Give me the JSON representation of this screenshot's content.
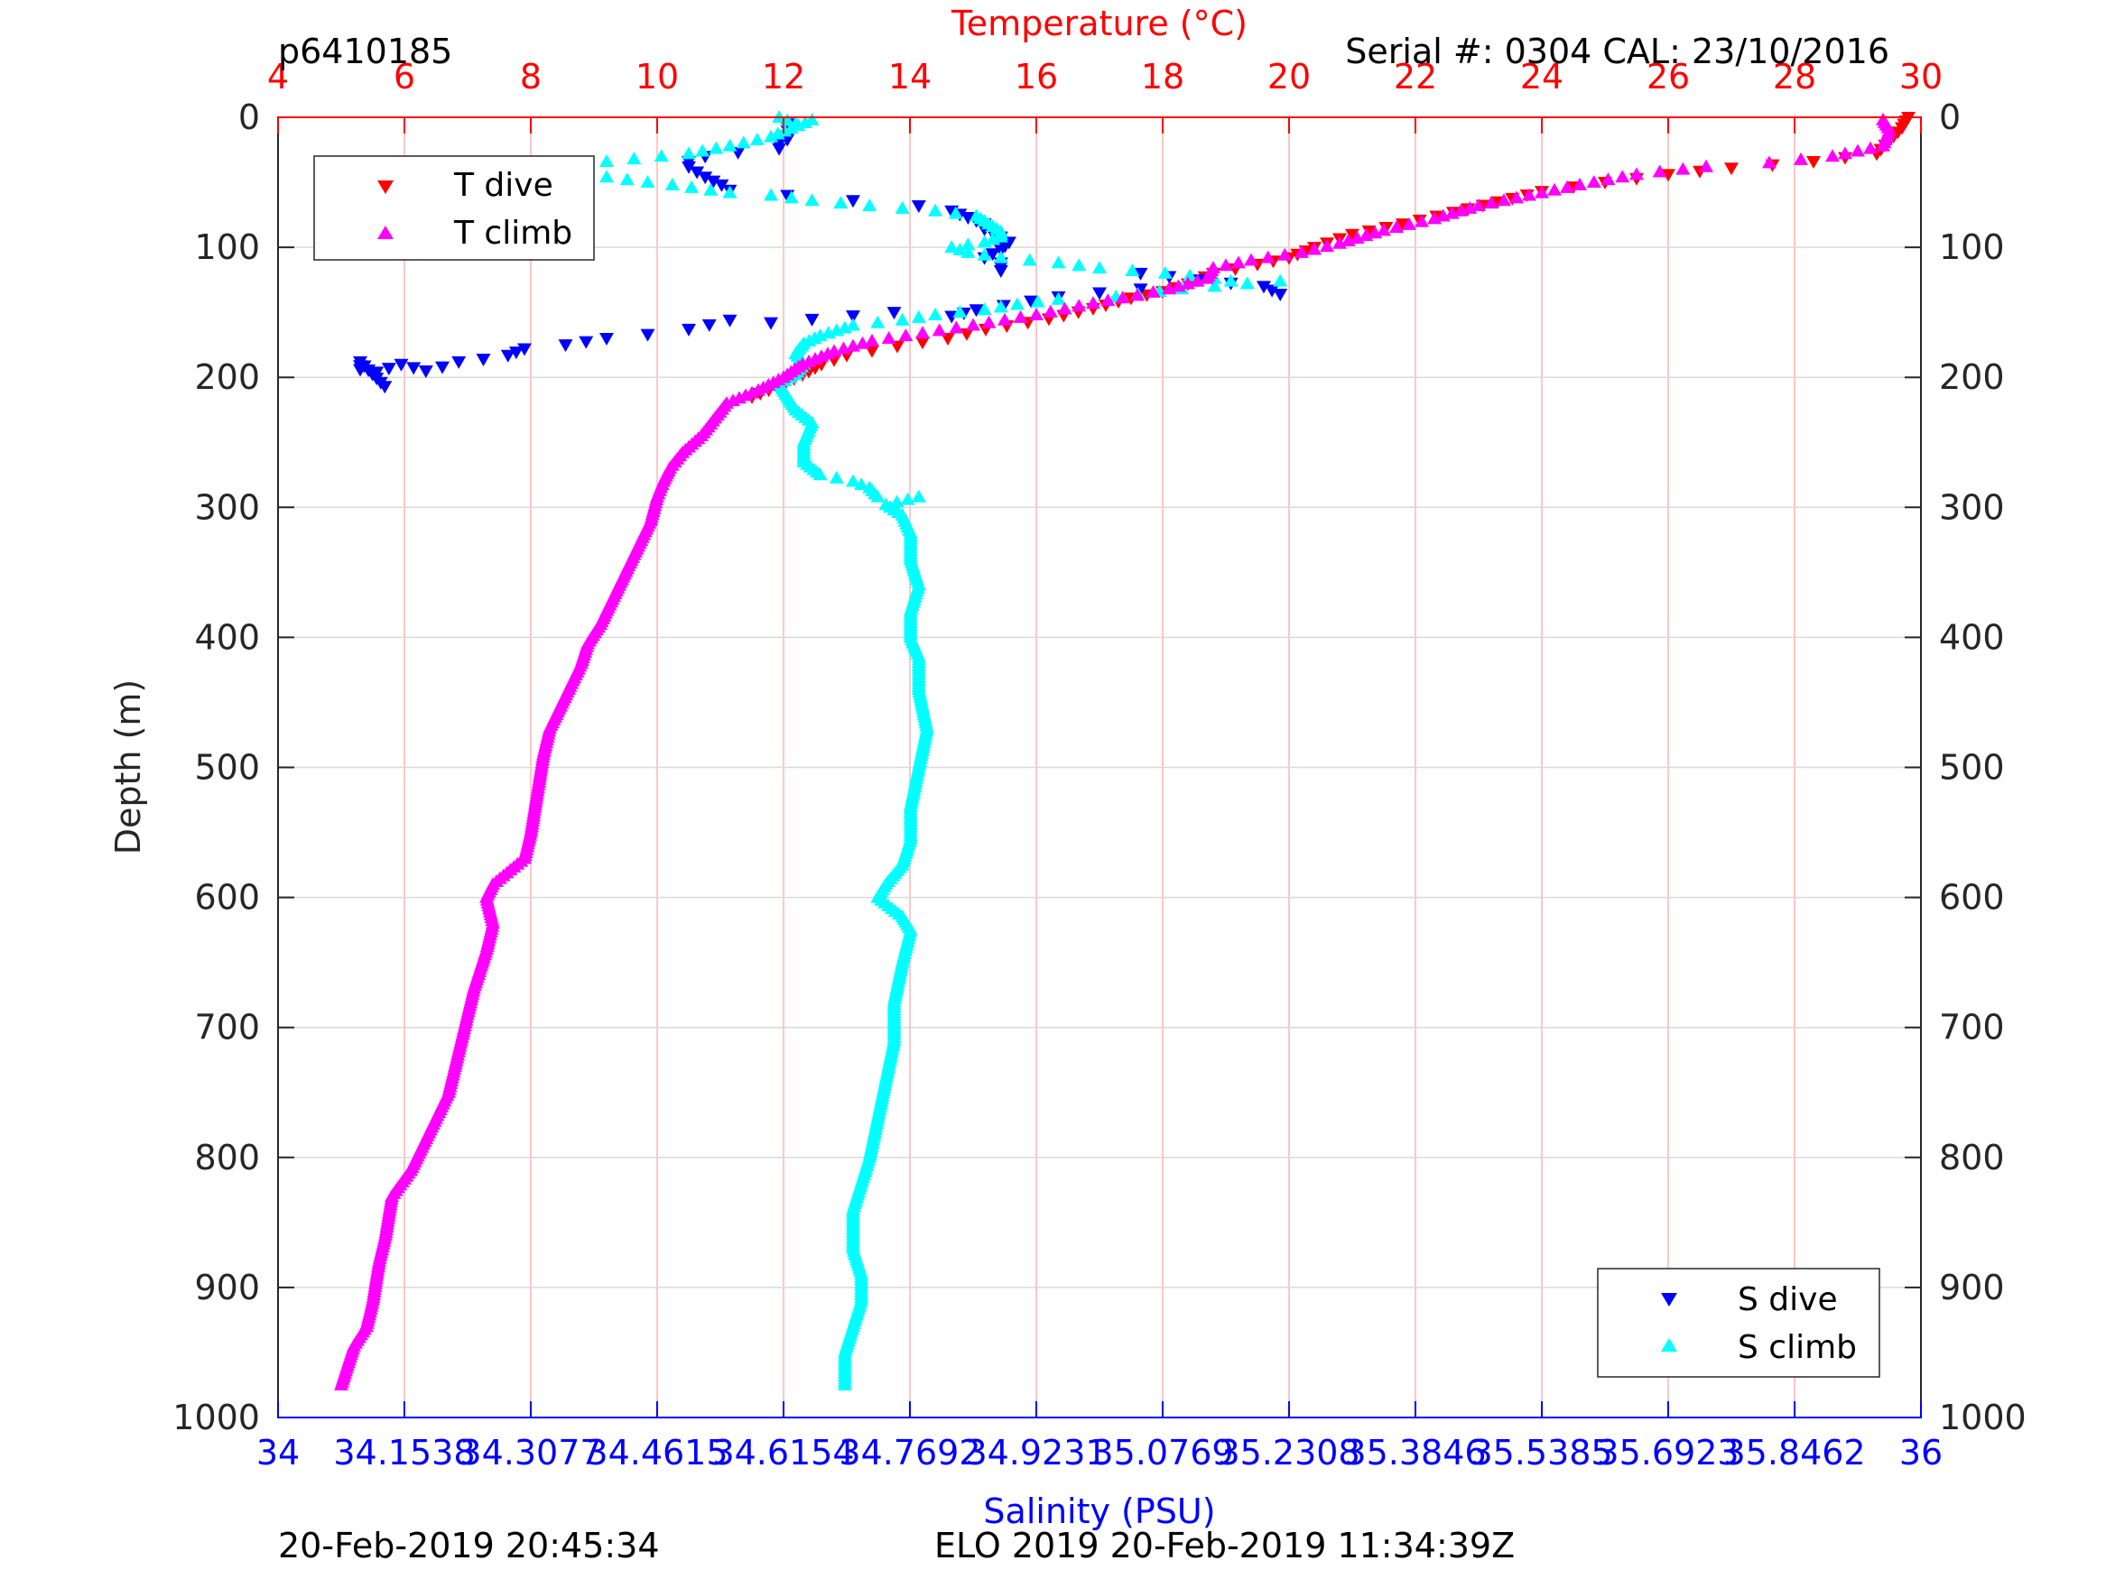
{
  "header": {
    "profile_id": "p6410185",
    "serial_cal": "Serial #: 0304  CAL: 23/10/2016"
  },
  "footer": {
    "left_timestamp": "20-Feb-2019 20:45:34",
    "right_text": "ELO 2019 20-Feb-2019 11:34:39Z"
  },
  "colors": {
    "temperature_axis": "#ff0000",
    "salinity_axis": "#0000ff",
    "t_dive": "#ff0000",
    "t_climb": "#ff00ff",
    "s_dive": "#0000ff",
    "s_climb": "#00ffff",
    "grid_vertical": "#ffb3b3",
    "grid_horizontal": "#d9d9d9"
  },
  "chart_data": {
    "type": "scatter",
    "title": "",
    "y_axis": {
      "label": "Depth (m)",
      "range": [
        0,
        1000
      ],
      "reversed": true,
      "ticks": [
        0,
        100,
        200,
        300,
        400,
        500,
        600,
        700,
        800,
        900,
        1000
      ],
      "tick_labels": [
        "0",
        "100",
        "200",
        "300",
        "400",
        "500",
        "600",
        "700",
        "800",
        "900",
        "1000"
      ],
      "right_ticks_mirrored": true
    },
    "top_axis": {
      "label": "Temperature (°C)",
      "range": [
        4,
        30
      ],
      "ticks": [
        4,
        6,
        8,
        10,
        12,
        14,
        16,
        18,
        20,
        22,
        24,
        26,
        28,
        30
      ],
      "tick_labels": [
        "4",
        "6",
        "8",
        "10",
        "12",
        "14",
        "16",
        "18",
        "20",
        "22",
        "24",
        "26",
        "28",
        "30"
      ]
    },
    "bottom_axis": {
      "label": "Salinity (PSU)",
      "range": [
        34,
        36
      ],
      "ticks": [
        34,
        34.1538,
        34.3077,
        34.4615,
        34.6154,
        34.7692,
        34.9231,
        35.0769,
        35.2308,
        35.3846,
        35.5385,
        35.6923,
        35.8462,
        36
      ],
      "tick_labels": [
        "34",
        "34.1538",
        "34.3077",
        "34.4615",
        "34.6154",
        "34.7692",
        "34.9231",
        "35.0769",
        "35.2308",
        "35.3846",
        "35.5385",
        "35.6923",
        "35.8462",
        "36"
      ]
    },
    "grid": {
      "vertical": true,
      "horizontal": true
    },
    "legends": [
      {
        "placement": "top-left",
        "entries": [
          "T dive",
          "T climb"
        ]
      },
      {
        "placement": "bottom-right",
        "entries": [
          "S dive",
          "S climb"
        ]
      }
    ],
    "series": [
      {
        "name": "T dive",
        "axis": "temperature",
        "marker": "triangle-down",
        "color": "#ff0000",
        "points": [
          [
            29.8,
            0
          ],
          [
            29.7,
            8
          ],
          [
            29.5,
            18
          ],
          [
            29.3,
            28
          ],
          [
            28.3,
            34
          ],
          [
            27.0,
            39
          ],
          [
            26.0,
            44
          ],
          [
            25.0,
            50
          ],
          [
            24.0,
            57
          ],
          [
            23.3,
            65
          ],
          [
            22.6,
            73
          ],
          [
            21.8,
            82
          ],
          [
            21.0,
            90
          ],
          [
            20.4,
            100
          ],
          [
            20.0,
            108
          ],
          [
            19.5,
            113
          ],
          [
            18.8,
            120
          ],
          [
            18.4,
            128
          ],
          [
            18.0,
            134
          ],
          [
            17.5,
            139
          ],
          [
            16.9,
            147
          ],
          [
            16.2,
            155
          ],
          [
            15.2,
            163
          ],
          [
            14.6,
            170
          ],
          [
            13.8,
            176
          ],
          [
            13.0,
            183
          ],
          [
            12.6,
            190
          ],
          [
            12.3,
            198
          ],
          [
            11.9,
            207
          ],
          [
            11.5,
            215
          ]
        ]
      },
      {
        "name": "T climb",
        "axis": "temperature",
        "marker": "triangle-up",
        "color": "#ff00ff",
        "points": [
          [
            29.4,
            2
          ],
          [
            29.5,
            10
          ],
          [
            29.4,
            22
          ],
          [
            28.6,
            30
          ],
          [
            27.6,
            35
          ],
          [
            26.6,
            38
          ],
          [
            25.5,
            44
          ],
          [
            24.6,
            52
          ],
          [
            23.8,
            60
          ],
          [
            23.0,
            68
          ],
          [
            22.3,
            78
          ],
          [
            21.5,
            87
          ],
          [
            20.8,
            97
          ],
          [
            20.2,
            104
          ],
          [
            19.4,
            110
          ],
          [
            18.8,
            116
          ],
          [
            18.7,
            124
          ],
          [
            18.1,
            132
          ],
          [
            17.6,
            137
          ],
          [
            16.9,
            143
          ],
          [
            16.0,
            152
          ],
          [
            15.0,
            160
          ],
          [
            14.2,
            166
          ],
          [
            13.4,
            172
          ],
          [
            12.8,
            180
          ],
          [
            12.3,
            190
          ],
          [
            12.0,
            200
          ],
          [
            11.6,
            210
          ],
          [
            11.1,
            220
          ],
          [
            10.7,
            245
          ],
          [
            10.4,
            258
          ],
          [
            10.2,
            270
          ],
          [
            10.1,
            280
          ],
          [
            10.0,
            292
          ],
          [
            9.9,
            310
          ],
          [
            9.7,
            330
          ],
          [
            9.4,
            360
          ],
          [
            9.1,
            390
          ],
          [
            8.9,
            405
          ],
          [
            8.8,
            420
          ],
          [
            8.6,
            440
          ],
          [
            8.3,
            470
          ],
          [
            8.2,
            490
          ],
          [
            8.1,
            520
          ],
          [
            8.0,
            550
          ],
          [
            7.9,
            570
          ],
          [
            7.4,
            590
          ],
          [
            7.3,
            600
          ],
          [
            7.4,
            620
          ],
          [
            7.3,
            640
          ],
          [
            7.1,
            670
          ],
          [
            6.9,
            710
          ],
          [
            6.7,
            750
          ],
          [
            6.3,
            790
          ],
          [
            6.1,
            810
          ],
          [
            5.8,
            830
          ],
          [
            5.7,
            860
          ],
          [
            5.6,
            880
          ],
          [
            5.5,
            910
          ],
          [
            5.4,
            930
          ],
          [
            5.2,
            945
          ],
          [
            5.1,
            960
          ],
          [
            5.0,
            975
          ]
        ]
      },
      {
        "name": "S dive",
        "axis": "salinity",
        "marker": "triangle-down",
        "color": "#0000ff",
        "points": [
          [
            34.62,
            5
          ],
          [
            34.62,
            10
          ],
          [
            34.62,
            14
          ],
          [
            34.62,
            17
          ],
          [
            34.61,
            20
          ],
          [
            34.61,
            24
          ],
          [
            34.56,
            27
          ],
          [
            34.52,
            30
          ],
          [
            34.5,
            34
          ],
          [
            34.5,
            38
          ],
          [
            34.51,
            42
          ],
          [
            34.52,
            46
          ],
          [
            34.54,
            52
          ],
          [
            34.55,
            56
          ],
          [
            34.62,
            60
          ],
          [
            34.7,
            64
          ],
          [
            34.78,
            68
          ],
          [
            34.82,
            72
          ],
          [
            34.84,
            77
          ],
          [
            34.86,
            82
          ],
          [
            34.86,
            86
          ],
          [
            34.88,
            92
          ],
          [
            34.89,
            96
          ],
          [
            34.88,
            102
          ],
          [
            34.86,
            108
          ],
          [
            34.88,
            112
          ],
          [
            34.88,
            118
          ],
          [
            35.05,
            120
          ],
          [
            35.12,
            125
          ],
          [
            35.2,
            130
          ],
          [
            35.22,
            136
          ],
          [
            35.05,
            132
          ],
          [
            34.95,
            138
          ],
          [
            34.85,
            148
          ],
          [
            34.82,
            153
          ],
          [
            34.75,
            150
          ],
          [
            34.6,
            158
          ],
          [
            34.55,
            156
          ],
          [
            34.5,
            163
          ],
          [
            34.45,
            167
          ],
          [
            34.4,
            170
          ],
          [
            34.35,
            175
          ],
          [
            34.3,
            178
          ],
          [
            34.28,
            183
          ],
          [
            34.25,
            186
          ],
          [
            34.22,
            188
          ],
          [
            34.2,
            192
          ],
          [
            34.18,
            195
          ],
          [
            34.15,
            190
          ],
          [
            34.12,
            196
          ],
          [
            34.1,
            194
          ],
          [
            34.1,
            188
          ],
          [
            34.13,
            207
          ]
        ]
      },
      {
        "name": "S climb",
        "axis": "salinity",
        "marker": "triangle-up",
        "color": "#00ffff",
        "points": [
          [
            34.61,
            0
          ],
          [
            34.63,
            5
          ],
          [
            34.65,
            2
          ],
          [
            34.6,
            15
          ],
          [
            34.55,
            22
          ],
          [
            34.5,
            28
          ],
          [
            34.4,
            34
          ],
          [
            34.3,
            38
          ],
          [
            34.18,
            40
          ],
          [
            34.26,
            43
          ],
          [
            34.32,
            44
          ],
          [
            34.4,
            46
          ],
          [
            34.45,
            50
          ],
          [
            34.48,
            52
          ],
          [
            34.55,
            58
          ],
          [
            34.6,
            60
          ],
          [
            34.65,
            64
          ],
          [
            34.72,
            68
          ],
          [
            34.8,
            72
          ],
          [
            34.85,
            76
          ],
          [
            34.86,
            80
          ],
          [
            34.87,
            84
          ],
          [
            34.88,
            88
          ],
          [
            34.88,
            92
          ],
          [
            34.86,
            96
          ],
          [
            34.82,
            100
          ],
          [
            34.84,
            104
          ],
          [
            34.88,
            108
          ],
          [
            34.95,
            112
          ],
          [
            35.0,
            116
          ],
          [
            35.08,
            120
          ],
          [
            35.14,
            124
          ],
          [
            35.18,
            128
          ],
          [
            35.22,
            126
          ],
          [
            35.1,
            132
          ],
          [
            35.02,
            138
          ],
          [
            34.95,
            140
          ],
          [
            34.9,
            144
          ],
          [
            34.86,
            148
          ],
          [
            34.8,
            152
          ],
          [
            34.76,
            156
          ],
          [
            34.7,
            160
          ],
          [
            34.68,
            164
          ],
          [
            34.66,
            168
          ],
          [
            34.64,
            174
          ],
          [
            34.63,
            182
          ],
          [
            34.64,
            190
          ],
          [
            34.63,
            198
          ],
          [
            34.61,
            205
          ],
          [
            34.62,
            215
          ],
          [
            34.63,
            225
          ],
          [
            34.65,
            235
          ],
          [
            34.64,
            250
          ],
          [
            34.64,
            265
          ],
          [
            34.66,
            275
          ],
          [
            34.7,
            280
          ],
          [
            34.72,
            285
          ],
          [
            34.73,
            292
          ],
          [
            34.78,
            292
          ],
          [
            34.74,
            298
          ],
          [
            34.76,
            306
          ],
          [
            34.77,
            320
          ],
          [
            34.77,
            340
          ],
          [
            34.78,
            360
          ],
          [
            34.77,
            380
          ],
          [
            34.77,
            400
          ],
          [
            34.78,
            415
          ],
          [
            34.78,
            440
          ],
          [
            34.79,
            470
          ],
          [
            34.78,
            500
          ],
          [
            34.77,
            530
          ],
          [
            34.77,
            555
          ],
          [
            34.76,
            575
          ],
          [
            34.74,
            590
          ],
          [
            34.73,
            600
          ],
          [
            34.76,
            615
          ],
          [
            34.77,
            625
          ],
          [
            34.76,
            650
          ],
          [
            34.75,
            680
          ],
          [
            34.75,
            710
          ],
          [
            34.74,
            740
          ],
          [
            34.73,
            770
          ],
          [
            34.72,
            800
          ],
          [
            34.71,
            820
          ],
          [
            34.7,
            840
          ],
          [
            34.7,
            870
          ],
          [
            34.71,
            890
          ],
          [
            34.71,
            910
          ],
          [
            34.7,
            930
          ],
          [
            34.69,
            950
          ],
          [
            34.69,
            975
          ]
        ]
      }
    ]
  }
}
